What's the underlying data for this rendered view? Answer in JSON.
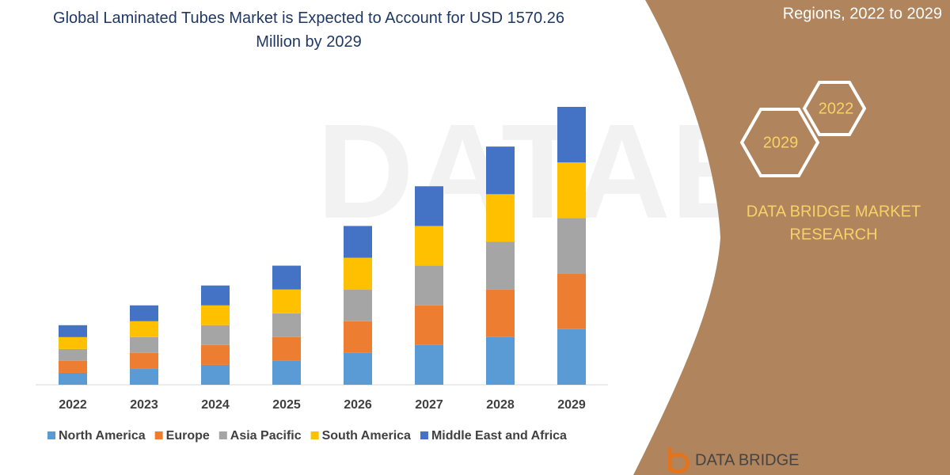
{
  "chart_data": {
    "type": "stacked-bar",
    "title": "Global Laminated Tubes Market is Expected to Account for USD 1570.26 Million by 2029",
    "categories": [
      "2022",
      "2023",
      "2024",
      "2025",
      "2026",
      "2027",
      "2028",
      "2029"
    ],
    "series": [
      {
        "name": "North America",
        "color": "#5b9bd5",
        "values": [
          15,
          20,
          25,
          30,
          40,
          50,
          60,
          70
        ]
      },
      {
        "name": "Europe",
        "color": "#ed7d31",
        "values": [
          15,
          20,
          25,
          30,
          40,
          50,
          60,
          70
        ]
      },
      {
        "name": "Asia Pacific",
        "color": "#a5a5a5",
        "values": [
          15,
          20,
          25,
          30,
          40,
          50,
          60,
          70
        ]
      },
      {
        "name": "South America",
        "color": "#ffc000",
        "values": [
          15,
          20,
          25,
          30,
          40,
          50,
          60,
          70
        ]
      },
      {
        "name": "Middle East and Africa",
        "color": "#4472c4",
        "values": [
          15,
          20,
          25,
          30,
          40,
          50,
          60,
          70
        ]
      }
    ],
    "legend": "bottom"
  },
  "header": {
    "subtitle": "Regions, 2022 to 2029"
  },
  "badges": [
    "2022",
    "2029"
  ],
  "brand": {
    "line1": "DATA BRIDGE MARKET",
    "line2": "RESEARCH",
    "logo": "DATA BRIDGE"
  }
}
